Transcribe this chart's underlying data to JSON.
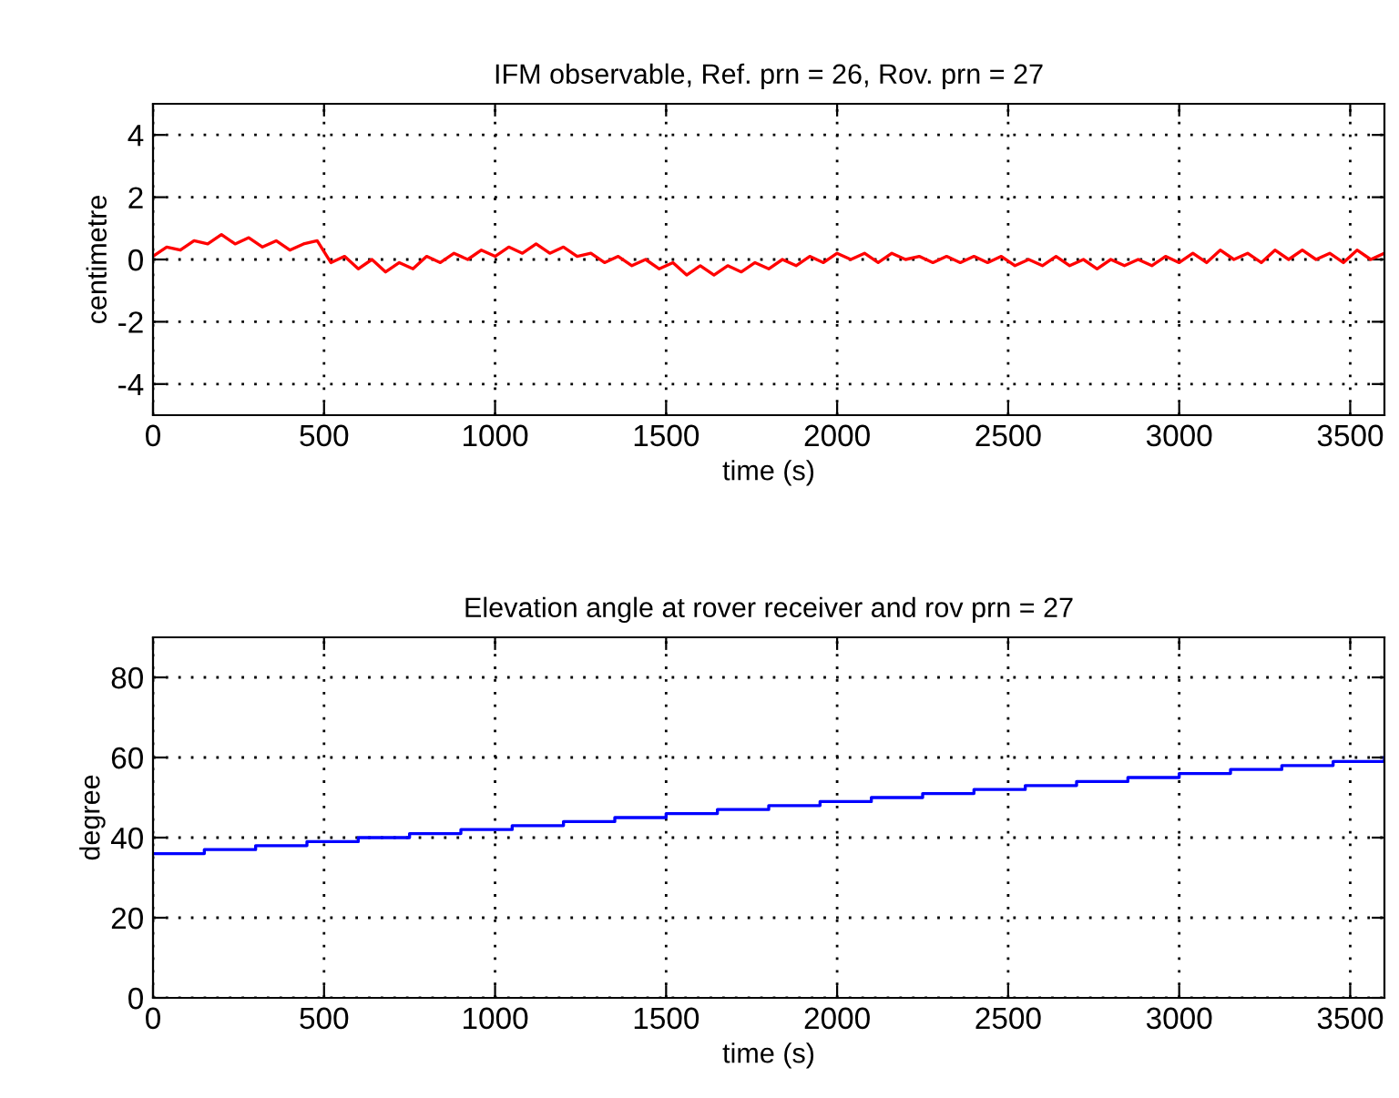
{
  "chart_data": [
    {
      "type": "line",
      "title": "IFM observable, Ref. prn = 26, Rov. prn = 27",
      "xlabel": "time (s)",
      "ylabel": "centimetre",
      "grid": true,
      "xlim": [
        0,
        3600
      ],
      "ylim": [
        -5,
        5
      ],
      "xticks": [
        0,
        500,
        1000,
        1500,
        2000,
        2500,
        3000,
        3500
      ],
      "yticks": [
        -4,
        -2,
        0,
        2,
        4
      ],
      "x": [
        0,
        40,
        80,
        120,
        160,
        200,
        240,
        280,
        320,
        360,
        400,
        440,
        480,
        520,
        560,
        600,
        640,
        680,
        720,
        760,
        800,
        840,
        880,
        920,
        960,
        1000,
        1040,
        1080,
        1120,
        1160,
        1200,
        1240,
        1280,
        1320,
        1360,
        1400,
        1440,
        1480,
        1520,
        1560,
        1600,
        1640,
        1680,
        1720,
        1760,
        1800,
        1840,
        1880,
        1920,
        1960,
        2000,
        2040,
        2080,
        2120,
        2160,
        2200,
        2240,
        2280,
        2320,
        2360,
        2400,
        2440,
        2480,
        2520,
        2560,
        2600,
        2640,
        2680,
        2720,
        2760,
        2800,
        2840,
        2880,
        2920,
        2960,
        3000,
        3040,
        3080,
        3120,
        3160,
        3200,
        3240,
        3280,
        3320,
        3360,
        3400,
        3440,
        3480,
        3520,
        3560,
        3600
      ],
      "series": [
        {
          "color": "#ff0000",
          "values": [
            0.1,
            0.4,
            0.3,
            0.6,
            0.5,
            0.8,
            0.5,
            0.7,
            0.4,
            0.6,
            0.3,
            0.5,
            0.6,
            -0.1,
            0.1,
            -0.3,
            0.0,
            -0.4,
            -0.1,
            -0.3,
            0.1,
            -0.1,
            0.2,
            0.0,
            0.3,
            0.1,
            0.4,
            0.2,
            0.5,
            0.2,
            0.4,
            0.1,
            0.2,
            -0.1,
            0.1,
            -0.2,
            0.0,
            -0.3,
            -0.1,
            -0.5,
            -0.2,
            -0.5,
            -0.2,
            -0.4,
            -0.1,
            -0.3,
            0.0,
            -0.2,
            0.1,
            -0.1,
            0.2,
            0.0,
            0.2,
            -0.1,
            0.2,
            0.0,
            0.1,
            -0.1,
            0.1,
            -0.1,
            0.1,
            -0.1,
            0.1,
            -0.2,
            0.0,
            -0.2,
            0.1,
            -0.2,
            0.0,
            -0.3,
            0.0,
            -0.2,
            0.0,
            -0.2,
            0.1,
            -0.1,
            0.2,
            -0.1,
            0.3,
            0.0,
            0.2,
            -0.1,
            0.3,
            0.0,
            0.3,
            0.0,
            0.2,
            -0.1,
            0.3,
            0.0,
            0.2
          ]
        }
      ]
    },
    {
      "type": "step",
      "title": "Elevation angle at rover receiver and rov prn = 27",
      "xlabel": "time (s)",
      "ylabel": "degree",
      "grid": true,
      "xlim": [
        0,
        3600
      ],
      "ylim": [
        0,
        90
      ],
      "xticks": [
        0,
        500,
        1000,
        1500,
        2000,
        2500,
        3000,
        3500
      ],
      "yticks": [
        0,
        20,
        40,
        60,
        80
      ],
      "x": [
        0,
        150,
        300,
        450,
        600,
        750,
        900,
        1050,
        1200,
        1350,
        1500,
        1650,
        1800,
        1950,
        2100,
        2250,
        2400,
        2550,
        2700,
        2850,
        3000,
        3150,
        3300,
        3450,
        3600
      ],
      "series": [
        {
          "color": "#0000ff",
          "values": [
            36,
            37,
            38,
            39,
            40,
            41,
            42,
            43,
            44,
            45,
            46,
            47,
            48,
            49,
            50,
            51,
            52,
            53,
            54,
            55,
            56,
            57,
            58,
            59,
            60
          ]
        }
      ]
    }
  ]
}
